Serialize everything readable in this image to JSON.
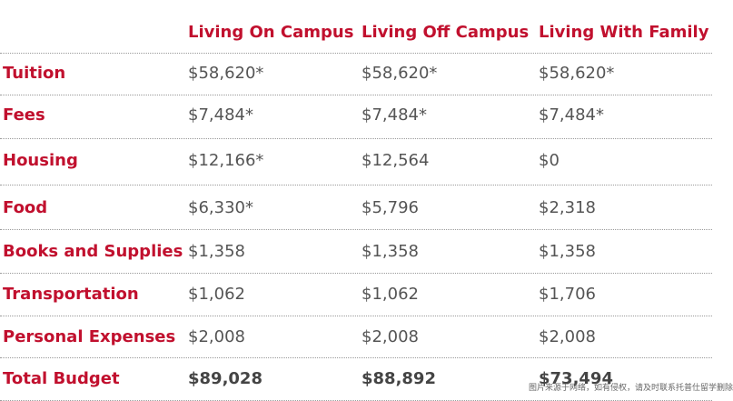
{
  "columns": [
    "Living On Campus",
    "Living Off Campus",
    "Living With Family"
  ],
  "rows": [
    {
      "label": "Tuition",
      "values": [
        "$58,620*",
        "$58,620*",
        "$58,620*"
      ]
    },
    {
      "label": "Fees",
      "values": [
        "$7,484*",
        "$7,484*",
        "$7,484*"
      ]
    },
    {
      "label": "Housing",
      "values": [
        "$12,166*",
        "$12,564",
        "$0"
      ]
    },
    {
      "label": "Food",
      "values": [
        "$6,330*",
        "$5,796",
        "$2,318"
      ]
    },
    {
      "label": "Books and Supplies",
      "values": [
        "$1,358",
        "$1,358",
        "$1,358"
      ]
    },
    {
      "label": "Transportation",
      "values": [
        "$1,062",
        "$1,062",
        "$1,706"
      ]
    },
    {
      "label": "Personal Expenses",
      "values": [
        "$2,008",
        "$2,008",
        "$2,008"
      ]
    },
    {
      "label": "Total Budget",
      "values": [
        "$89,028",
        "$88,892",
        "$73,494"
      ]
    }
  ],
  "watermark": "图片来源于网络，如有侵权，请及时联系托普仕留学删除",
  "colors": {
    "accent": "#c1102e",
    "value_text": "#555555",
    "rule": "#9a9a9a"
  }
}
